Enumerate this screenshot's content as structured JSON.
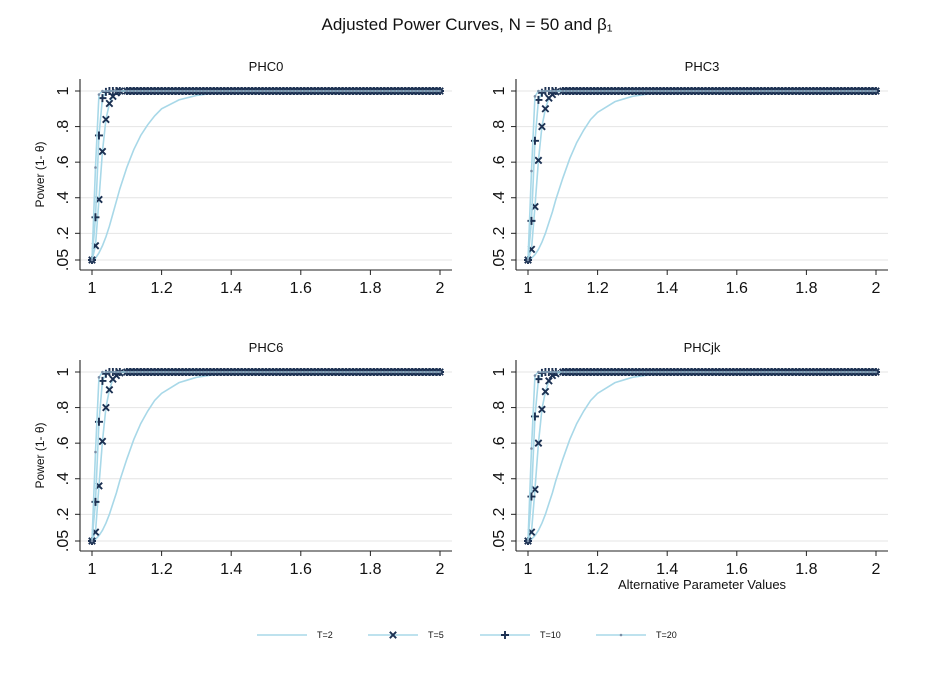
{
  "title": "Adjusted Power Curves, N = 50 and β₁",
  "chart_data": [
    {
      "type": "line",
      "panel_title": "PHC0",
      "ylabel": "Power (1- θ)",
      "xlabel": "",
      "xlim": [
        1,
        2
      ],
      "ylim": [
        0.05,
        1
      ],
      "xticks": [
        1,
        1.2,
        1.4,
        1.6,
        1.8,
        2
      ],
      "xtick_labels": [
        "1",
        "1.2",
        "1.4",
        "1.6",
        "1.8",
        "2"
      ],
      "yticks": [
        0.05,
        0.2,
        0.4,
        0.6,
        0.8,
        1
      ],
      "ytick_labels": [
        ".05",
        ".2",
        ".4",
        ".6",
        ".8",
        "1"
      ],
      "grid": true,
      "x": [
        1,
        1.01,
        1.02,
        1.03,
        1.04,
        1.05,
        1.06,
        1.07,
        1.08,
        1.1,
        1.12,
        1.14,
        1.16,
        1.18,
        1.2,
        1.25,
        1.3,
        1.35,
        1.4,
        1.5,
        1.6,
        1.7,
        1.8,
        1.9,
        2
      ],
      "series": [
        {
          "name": "T=2",
          "values": [
            0.05,
            0.06,
            0.09,
            0.13,
            0.18,
            0.24,
            0.31,
            0.38,
            0.45,
            0.57,
            0.67,
            0.75,
            0.81,
            0.86,
            0.9,
            0.95,
            0.975,
            0.988,
            0.995,
            0.999,
            1,
            1,
            1,
            1,
            1
          ]
        },
        {
          "name": "T=5",
          "values": [
            0.05,
            0.13,
            0.39,
            0.66,
            0.84,
            0.93,
            0.97,
            0.99,
            1,
            1,
            1,
            1,
            1,
            1,
            1,
            1,
            1,
            1,
            1,
            1,
            1,
            1,
            1,
            1,
            1
          ]
        },
        {
          "name": "T=10",
          "values": [
            0.05,
            0.29,
            0.75,
            0.96,
            0.995,
            1,
            1,
            1,
            1,
            1,
            1,
            1,
            1,
            1,
            1,
            1,
            1,
            1,
            1,
            1,
            1,
            1,
            1,
            1,
            1
          ]
        },
        {
          "name": "T=20",
          "values": [
            0.05,
            0.57,
            0.98,
            1,
            1,
            1,
            1,
            1,
            1,
            1,
            1,
            1,
            1,
            1,
            1,
            1,
            1,
            1,
            1,
            1,
            1,
            1,
            1,
            1,
            1
          ]
        }
      ]
    },
    {
      "type": "line",
      "panel_title": "PHC3",
      "ylabel": "",
      "xlabel": "",
      "xlim": [
        1,
        2
      ],
      "ylim": [
        0.05,
        1
      ],
      "xticks": [
        1,
        1.2,
        1.4,
        1.6,
        1.8,
        2
      ],
      "xtick_labels": [
        "1",
        "1.2",
        "1.4",
        "1.6",
        "1.8",
        "2"
      ],
      "yticks": [
        0.05,
        0.2,
        0.4,
        0.6,
        0.8,
        1
      ],
      "ytick_labels": [
        ".05",
        ".2",
        ".4",
        ".6",
        ".8",
        "1"
      ],
      "grid": true,
      "x": [
        1,
        1.01,
        1.02,
        1.03,
        1.04,
        1.05,
        1.06,
        1.07,
        1.08,
        1.1,
        1.12,
        1.14,
        1.16,
        1.18,
        1.2,
        1.25,
        1.3,
        1.35,
        1.4,
        1.5,
        1.6,
        1.7,
        1.8,
        1.9,
        2
      ],
      "series": [
        {
          "name": "T=2",
          "values": [
            0.05,
            0.06,
            0.08,
            0.11,
            0.15,
            0.2,
            0.26,
            0.32,
            0.39,
            0.51,
            0.62,
            0.71,
            0.78,
            0.84,
            0.88,
            0.94,
            0.97,
            0.985,
            0.993,
            0.999,
            1,
            1,
            1,
            1,
            1
          ]
        },
        {
          "name": "T=5",
          "values": [
            0.05,
            0.11,
            0.35,
            0.61,
            0.8,
            0.9,
            0.96,
            0.98,
            0.995,
            1,
            1,
            1,
            1,
            1,
            1,
            1,
            1,
            1,
            1,
            1,
            1,
            1,
            1,
            1,
            1
          ]
        },
        {
          "name": "T=10",
          "values": [
            0.05,
            0.27,
            0.72,
            0.95,
            0.99,
            1,
            1,
            1,
            1,
            1,
            1,
            1,
            1,
            1,
            1,
            1,
            1,
            1,
            1,
            1,
            1,
            1,
            1,
            1,
            1
          ]
        },
        {
          "name": "T=20",
          "values": [
            0.05,
            0.55,
            0.97,
            1,
            1,
            1,
            1,
            1,
            1,
            1,
            1,
            1,
            1,
            1,
            1,
            1,
            1,
            1,
            1,
            1,
            1,
            1,
            1,
            1,
            1
          ]
        }
      ]
    },
    {
      "type": "line",
      "panel_title": "PHC6",
      "ylabel": "Power (1- θ)",
      "xlabel": "",
      "xlim": [
        1,
        2
      ],
      "ylim": [
        0.05,
        1
      ],
      "xticks": [
        1,
        1.2,
        1.4,
        1.6,
        1.8,
        2
      ],
      "xtick_labels": [
        "1",
        "1.2",
        "1.4",
        "1.6",
        "1.8",
        "2"
      ],
      "yticks": [
        0.05,
        0.2,
        0.4,
        0.6,
        0.8,
        1
      ],
      "ytick_labels": [
        ".05",
        ".2",
        ".4",
        ".6",
        ".8",
        "1"
      ],
      "grid": true,
      "x": [
        1,
        1.01,
        1.02,
        1.03,
        1.04,
        1.05,
        1.06,
        1.07,
        1.08,
        1.1,
        1.12,
        1.14,
        1.16,
        1.18,
        1.2,
        1.25,
        1.3,
        1.35,
        1.4,
        1.5,
        1.6,
        1.7,
        1.8,
        1.9,
        2
      ],
      "series": [
        {
          "name": "T=2",
          "values": [
            0.05,
            0.06,
            0.08,
            0.11,
            0.15,
            0.2,
            0.26,
            0.32,
            0.39,
            0.51,
            0.62,
            0.71,
            0.78,
            0.84,
            0.88,
            0.94,
            0.97,
            0.985,
            0.993,
            0.999,
            1,
            1,
            1,
            1,
            1
          ]
        },
        {
          "name": "T=5",
          "values": [
            0.05,
            0.1,
            0.36,
            0.61,
            0.8,
            0.9,
            0.96,
            0.98,
            0.995,
            1,
            1,
            1,
            1,
            1,
            1,
            1,
            1,
            1,
            1,
            1,
            1,
            1,
            1,
            1,
            1
          ]
        },
        {
          "name": "T=10",
          "values": [
            0.05,
            0.27,
            0.72,
            0.95,
            0.99,
            1,
            1,
            1,
            1,
            1,
            1,
            1,
            1,
            1,
            1,
            1,
            1,
            1,
            1,
            1,
            1,
            1,
            1,
            1,
            1
          ]
        },
        {
          "name": "T=20",
          "values": [
            0.05,
            0.55,
            0.97,
            1,
            1,
            1,
            1,
            1,
            1,
            1,
            1,
            1,
            1,
            1,
            1,
            1,
            1,
            1,
            1,
            1,
            1,
            1,
            1,
            1,
            1
          ]
        }
      ]
    },
    {
      "type": "line",
      "panel_title": "PHCjk",
      "ylabel": "",
      "xlabel": "Alternative Parameter Values",
      "xlim": [
        1,
        2
      ],
      "ylim": [
        0.05,
        1
      ],
      "xticks": [
        1,
        1.2,
        1.4,
        1.6,
        1.8,
        2
      ],
      "xtick_labels": [
        "1",
        "1.2",
        "1.4",
        "1.6",
        "1.8",
        "2"
      ],
      "yticks": [
        0.05,
        0.2,
        0.4,
        0.6,
        0.8,
        1
      ],
      "ytick_labels": [
        ".05",
        ".2",
        ".4",
        ".6",
        ".8",
        "1"
      ],
      "grid": true,
      "x": [
        1,
        1.01,
        1.02,
        1.03,
        1.04,
        1.05,
        1.06,
        1.07,
        1.08,
        1.1,
        1.12,
        1.14,
        1.16,
        1.18,
        1.2,
        1.25,
        1.3,
        1.35,
        1.4,
        1.5,
        1.6,
        1.7,
        1.8,
        1.9,
        2
      ],
      "series": [
        {
          "name": "T=2",
          "values": [
            0.05,
            0.06,
            0.08,
            0.11,
            0.15,
            0.2,
            0.26,
            0.32,
            0.39,
            0.51,
            0.62,
            0.71,
            0.78,
            0.84,
            0.88,
            0.94,
            0.97,
            0.985,
            0.993,
            0.999,
            1,
            1,
            1,
            1,
            1
          ]
        },
        {
          "name": "T=5",
          "values": [
            0.05,
            0.1,
            0.34,
            0.6,
            0.79,
            0.89,
            0.95,
            0.98,
            0.99,
            1,
            1,
            1,
            1,
            1,
            1,
            1,
            1,
            1,
            1,
            1,
            1,
            1,
            1,
            1,
            1
          ]
        },
        {
          "name": "T=10",
          "values": [
            0.05,
            0.3,
            0.75,
            0.96,
            0.995,
            1,
            1,
            1,
            1,
            1,
            1,
            1,
            1,
            1,
            1,
            1,
            1,
            1,
            1,
            1,
            1,
            1,
            1,
            1,
            1
          ]
        },
        {
          "name": "T=20",
          "values": [
            0.05,
            0.57,
            0.98,
            1,
            1,
            1,
            1,
            1,
            1,
            1,
            1,
            1,
            1,
            1,
            1,
            1,
            1,
            1,
            1,
            1,
            1,
            1,
            1,
            1,
            1
          ]
        }
      ]
    }
  ],
  "legend": {
    "placement": "bottom",
    "items": [
      {
        "label": "T=2",
        "marker": "none"
      },
      {
        "label": "T=5",
        "marker": "x"
      },
      {
        "label": "T=10",
        "marker": "plus"
      },
      {
        "label": "T=20",
        "marker": "dot"
      }
    ]
  },
  "colors": {
    "line": "#a8d8e8",
    "marker": "#1c3152",
    "grid": "#e4e4e4",
    "axis": "#222222"
  },
  "icons": {
    "x_marker": "cross-marker-icon",
    "plus_marker": "plus-marker-icon",
    "dot_marker": "dot-marker-icon"
  }
}
